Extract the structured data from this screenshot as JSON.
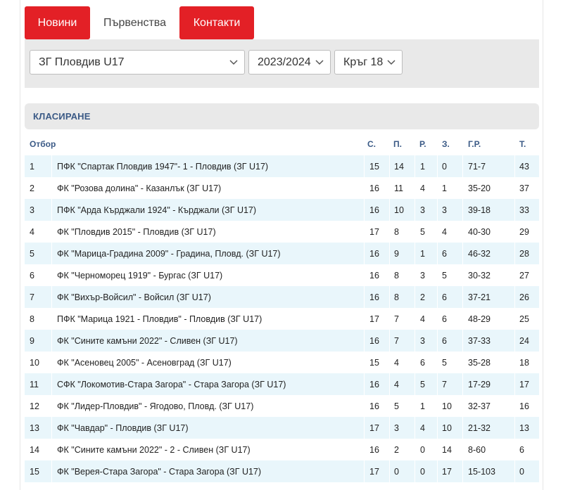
{
  "tabs": [
    {
      "label": "Новини",
      "active": true
    },
    {
      "label": "Първенства",
      "active": false
    },
    {
      "label": "Контакти",
      "active": true
    }
  ],
  "filters": {
    "team": "ЗГ Пловдив U17",
    "season": "2023/2024",
    "round": "Кръг 18"
  },
  "section_title": "КЛАСИРАНЕ",
  "columns": {
    "team": "Отбор",
    "games": "С.",
    "wins": "П.",
    "draws": "Р.",
    "losses": "З.",
    "goals": "Г.Р.",
    "points": "Т."
  },
  "rows": [
    {
      "pos": "1",
      "team": "ПФК \"Спартак Пловдив 1947\"- 1 - Пловдив (ЗГ U17)",
      "g": "15",
      "w": "14",
      "d": "1",
      "l": "0",
      "gr": "71-7",
      "pts": "43"
    },
    {
      "pos": "2",
      "team": "ФК \"Розова долина\" - Казанлък (ЗГ U17)",
      "g": "16",
      "w": "11",
      "d": "4",
      "l": "1",
      "gr": "35-20",
      "pts": "37"
    },
    {
      "pos": "3",
      "team": "ПФК \"Арда Кърджали 1924\" - Кърджали (ЗГ U17)",
      "g": "16",
      "w": "10",
      "d": "3",
      "l": "3",
      "gr": "39-18",
      "pts": "33"
    },
    {
      "pos": "4",
      "team": "ФК \"Пловдив 2015\" - Пловдив (ЗГ U17)",
      "g": "17",
      "w": "8",
      "d": "5",
      "l": "4",
      "gr": "40-30",
      "pts": "29"
    },
    {
      "pos": "5",
      "team": "ФК \"Марица-Градина 2009\" - Градина, Пловд. (ЗГ U17)",
      "g": "16",
      "w": "9",
      "d": "1",
      "l": "6",
      "gr": "46-32",
      "pts": "28"
    },
    {
      "pos": "6",
      "team": "ФК \"Черноморец 1919\" - Бургас (ЗГ U17)",
      "g": "16",
      "w": "8",
      "d": "3",
      "l": "5",
      "gr": "30-32",
      "pts": "27"
    },
    {
      "pos": "7",
      "team": "ФК \"Вихър-Войсил\" - Войсил (ЗГ U17)",
      "g": "16",
      "w": "8",
      "d": "2",
      "l": "6",
      "gr": "37-21",
      "pts": "26"
    },
    {
      "pos": "8",
      "team": "ПФК \"Марица 1921 - Пловдив\" - Пловдив (ЗГ U17)",
      "g": "17",
      "w": "7",
      "d": "4",
      "l": "6",
      "gr": "48-29",
      "pts": "25"
    },
    {
      "pos": "9",
      "team": "ФК \"Сините камъни 2022\" - Сливен (ЗГ U17)",
      "g": "16",
      "w": "7",
      "d": "3",
      "l": "6",
      "gr": "37-33",
      "pts": "24"
    },
    {
      "pos": "10",
      "team": "ФК \"Асеновец 2005\" - Асеновград (ЗГ U17)",
      "g": "15",
      "w": "4",
      "d": "6",
      "l": "5",
      "gr": "35-28",
      "pts": "18"
    },
    {
      "pos": "11",
      "team": "СФК \"Локомотив-Стара Загора\" - Стара Загора (ЗГ U17)",
      "g": "16",
      "w": "4",
      "d": "5",
      "l": "7",
      "gr": "17-29",
      "pts": "17"
    },
    {
      "pos": "12",
      "team": "ФК \"Лидер-Пловдив\" - Ягодово, Пловд. (ЗГ U17)",
      "g": "16",
      "w": "5",
      "d": "1",
      "l": "10",
      "gr": "32-37",
      "pts": "16"
    },
    {
      "pos": "13",
      "team": "ФК \"Чавдар\" - Пловдив (ЗГ U17)",
      "g": "17",
      "w": "3",
      "d": "4",
      "l": "10",
      "gr": "21-32",
      "pts": "13"
    },
    {
      "pos": "14",
      "team": "ФК \"Сините камъни 2022\" - 2 - Сливен (ЗГ U17)",
      "g": "16",
      "w": "2",
      "d": "0",
      "l": "14",
      "gr": "8-60",
      "pts": "6"
    },
    {
      "pos": "15",
      "team": "ФК \"Верея-Стара Загора\" - Стара Загора (ЗГ U17)",
      "g": "17",
      "w": "0",
      "d": "0",
      "l": "17",
      "gr": "15-103",
      "pts": "0"
    }
  ],
  "colors": {
    "accent": "#e32026",
    "header_text": "#3b5a86",
    "row_stripe": "#e9f6fb",
    "panel": "#e9e9e9"
  }
}
